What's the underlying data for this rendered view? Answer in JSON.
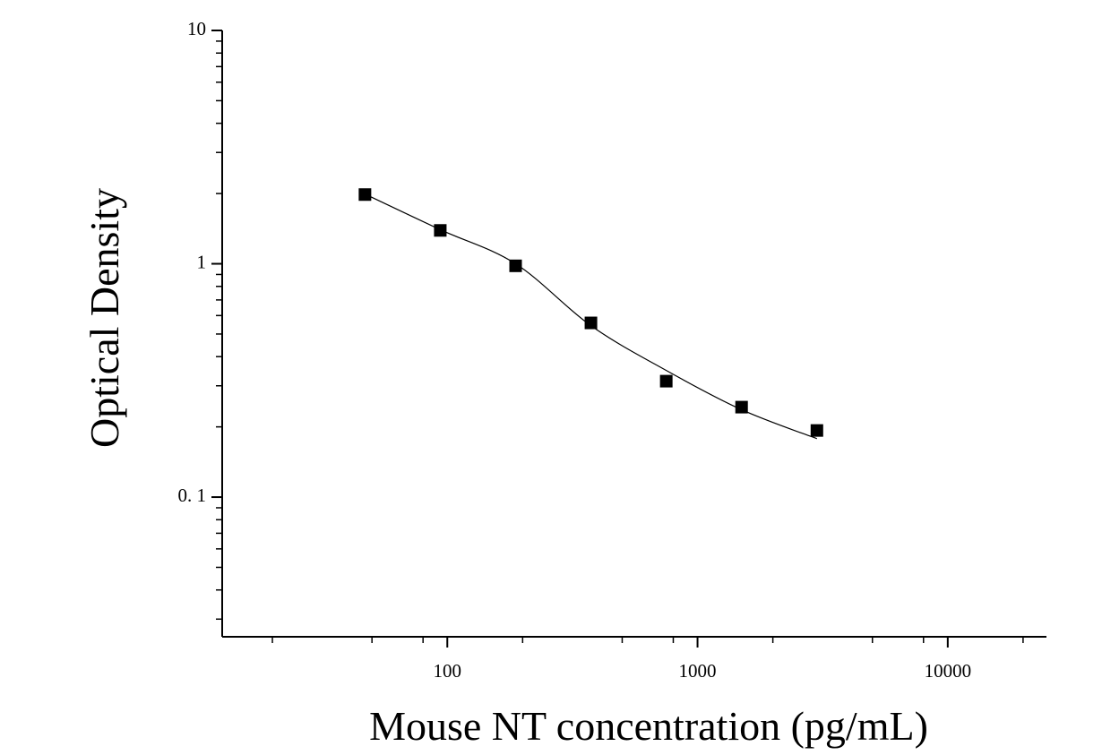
{
  "chart_data": {
    "type": "scatter",
    "x_label": "Mouse NT concentration (pg/mL)",
    "y_label": "Optical Density",
    "xscale": "log",
    "yscale": "log",
    "xlim": [
      12.6,
      24800
    ],
    "ylim": [
      0.0252,
      10
    ],
    "xticks": [
      100,
      1000,
      10000
    ],
    "yticks": [
      {
        "value": 0.1,
        "label": "0. 1"
      },
      1,
      10
    ],
    "xminorticks": [
      20,
      50,
      80,
      200,
      500,
      800,
      2000,
      5000,
      8000,
      20000
    ],
    "yminorticks": [
      0.03,
      0.04,
      0.05,
      0.06,
      0.07,
      0.08,
      0.09,
      0.2,
      0.3,
      0.4,
      0.5,
      0.6,
      0.7,
      0.8,
      0.9,
      2,
      3,
      4,
      5,
      6,
      7,
      8,
      9
    ],
    "series": [
      {
        "type": "scatter",
        "color": "#000000",
        "x": [
          46.875,
          93.75,
          187.5,
          375,
          750,
          1500,
          3000
        ],
        "values": [
          1.98,
          1.39,
          0.98,
          0.558,
          0.314,
          0.243,
          0.193
        ]
      },
      {
        "type": "line",
        "color": "#000000",
        "x": [
          46.875,
          93.75,
          187.5,
          375,
          750,
          1500,
          3000
        ],
        "values": [
          1.99,
          1.4,
          1.0,
          0.543,
          0.349,
          0.237,
          0.178
        ]
      }
    ]
  }
}
